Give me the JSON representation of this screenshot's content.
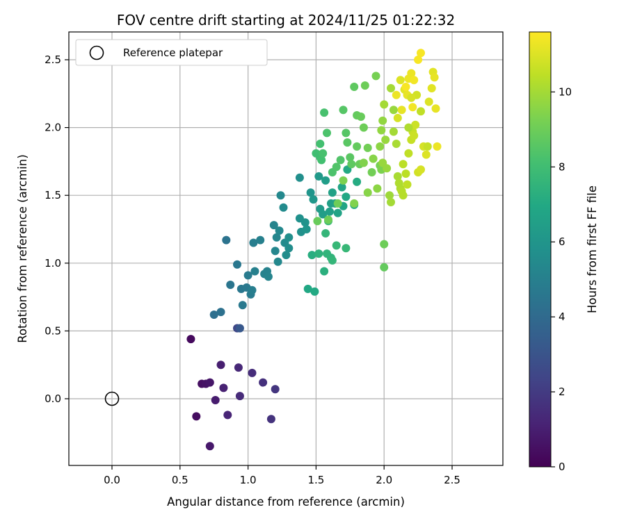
{
  "chart_data": {
    "type": "scatter",
    "title": "FOV centre drift starting at 2024/11/25 01:22:32",
    "xlabel": "Angular distance from reference (arcmin)",
    "ylabel": "Rotation from reference (arcmin)",
    "xlim": [
      -0.32,
      2.85
    ],
    "ylim": [
      -0.5,
      2.7
    ],
    "x_ticks": [
      0.0,
      0.5,
      1.0,
      1.5,
      2.0,
      2.5
    ],
    "y_ticks": [
      0.0,
      0.5,
      1.0,
      1.5,
      2.0,
      2.5
    ],
    "x_tick_labels": [
      "0.0",
      "0.5",
      "1.0",
      "1.5",
      "2.0",
      "2.5"
    ],
    "y_tick_labels": [
      "0.0",
      "0.5",
      "1.0",
      "1.5",
      "2.0",
      "2.5"
    ],
    "grid": true,
    "legend": {
      "location": "top-left",
      "entries": [
        "Reference platepar"
      ]
    },
    "reference_point": {
      "x": 0.0,
      "y": 0.0,
      "marker": "open circle"
    },
    "colorbar": {
      "label": "Hours from first FF file",
      "colormap": "viridis",
      "range": [
        0,
        11.6
      ],
      "ticks": [
        0,
        2,
        4,
        6,
        8,
        10
      ],
      "tick_labels": [
        "0",
        "2",
        "4",
        "6",
        "8",
        "10"
      ]
    },
    "points": [
      [
        0.58,
        0.44,
        0.3
      ],
      [
        0.62,
        -0.13,
        0.4
      ],
      [
        0.66,
        0.11,
        0.5
      ],
      [
        0.69,
        0.11,
        0.6
      ],
      [
        0.72,
        0.12,
        0.7
      ],
      [
        0.72,
        -0.35,
        0.8
      ],
      [
        0.76,
        -0.01,
        0.9
      ],
      [
        0.8,
        0.25,
        1.0
      ],
      [
        0.82,
        0.08,
        1.1
      ],
      [
        0.85,
        -0.12,
        1.2
      ],
      [
        0.93,
        0.23,
        1.3
      ],
      [
        0.94,
        0.02,
        1.4
      ],
      [
        1.03,
        0.19,
        1.5
      ],
      [
        1.11,
        0.12,
        1.6
      ],
      [
        1.17,
        -0.15,
        1.7
      ],
      [
        1.2,
        0.07,
        1.8
      ],
      [
        0.92,
        0.52,
        2.5
      ],
      [
        0.94,
        0.52,
        3.2
      ],
      [
        0.75,
        0.62,
        4.2
      ],
      [
        0.8,
        0.64,
        4.3
      ],
      [
        0.84,
        1.17,
        4.4
      ],
      [
        0.87,
        0.84,
        4.5
      ],
      [
        0.92,
        0.99,
        4.6
      ],
      [
        0.95,
        0.81,
        4.6
      ],
      [
        0.96,
        0.69,
        4.7
      ],
      [
        0.99,
        0.82,
        4.7
      ],
      [
        1.0,
        0.91,
        4.8
      ],
      [
        1.02,
        0.77,
        4.8
      ],
      [
        1.03,
        0.8,
        4.9
      ],
      [
        1.04,
        1.15,
        4.9
      ],
      [
        1.05,
        0.94,
        5.0
      ],
      [
        1.09,
        1.17,
        5.0
      ],
      [
        1.12,
        0.92,
        5.1
      ],
      [
        1.14,
        0.94,
        5.1
      ],
      [
        1.15,
        0.9,
        5.2
      ],
      [
        1.19,
        1.28,
        5.2
      ],
      [
        1.2,
        1.09,
        5.3
      ],
      [
        1.21,
        1.19,
        5.3
      ],
      [
        1.22,
        1.01,
        5.4
      ],
      [
        1.23,
        1.24,
        5.4
      ],
      [
        1.24,
        1.5,
        5.4
      ],
      [
        1.26,
        1.41,
        5.5
      ],
      [
        1.27,
        1.15,
        5.5
      ],
      [
        1.28,
        1.06,
        5.6
      ],
      [
        1.3,
        1.11,
        5.6
      ],
      [
        1.3,
        1.19,
        5.7
      ],
      [
        1.38,
        1.63,
        5.7
      ],
      [
        1.38,
        1.33,
        5.8
      ],
      [
        1.39,
        1.23,
        5.8
      ],
      [
        1.42,
        1.3,
        5.9
      ],
      [
        1.43,
        1.25,
        6.0
      ],
      [
        1.46,
        1.52,
        6.0
      ],
      [
        1.48,
        1.47,
        6.1
      ],
      [
        1.52,
        1.64,
        6.2
      ],
      [
        1.53,
        1.4,
        6.3
      ],
      [
        1.55,
        1.36,
        6.4
      ],
      [
        1.57,
        1.61,
        6.4
      ],
      [
        1.6,
        1.38,
        6.5
      ],
      [
        1.61,
        1.44,
        6.5
      ],
      [
        1.62,
        1.52,
        6.6
      ],
      [
        1.64,
        1.44,
        6.6
      ],
      [
        1.66,
        1.37,
        6.7
      ],
      [
        1.69,
        1.56,
        6.8
      ],
      [
        1.7,
        1.42,
        6.8
      ],
      [
        1.72,
        1.49,
        6.9
      ],
      [
        1.73,
        1.69,
        7.0
      ],
      [
        1.78,
        1.43,
        7.1
      ],
      [
        1.8,
        1.6,
        7.1
      ],
      [
        1.44,
        0.81,
        6.9
      ],
      [
        1.49,
        0.79,
        7.0
      ],
      [
        1.47,
        1.06,
        7.2
      ],
      [
        1.56,
        0.94,
        7.3
      ],
      [
        1.52,
        1.07,
        7.4
      ],
      [
        1.58,
        1.07,
        7.5
      ],
      [
        1.61,
        1.04,
        7.5
      ],
      [
        1.62,
        1.02,
        7.6
      ],
      [
        1.57,
        1.22,
        7.6
      ],
      [
        1.65,
        1.13,
        7.7
      ],
      [
        1.72,
        1.11,
        7.7
      ],
      [
        1.59,
        1.31,
        7.8
      ],
      [
        1.5,
        1.81,
        8.0
      ],
      [
        1.53,
        1.78,
        8.0
      ],
      [
        1.53,
        1.88,
        8.1
      ],
      [
        1.54,
        1.76,
        8.1
      ],
      [
        1.55,
        1.81,
        8.2
      ],
      [
        1.56,
        2.11,
        8.2
      ],
      [
        1.58,
        1.96,
        8.3
      ],
      [
        1.62,
        1.67,
        8.3
      ],
      [
        1.65,
        1.71,
        8.4
      ],
      [
        1.68,
        1.76,
        8.4
      ],
      [
        1.7,
        2.13,
        8.5
      ],
      [
        1.72,
        1.96,
        8.5
      ],
      [
        1.73,
        1.89,
        8.6
      ],
      [
        1.75,
        1.78,
        8.6
      ],
      [
        1.76,
        1.73,
        8.7
      ],
      [
        1.78,
        2.3,
        8.7
      ],
      [
        1.8,
        1.86,
        8.8
      ],
      [
        1.8,
        2.09,
        8.8
      ],
      [
        1.82,
        1.73,
        8.9
      ],
      [
        1.83,
        2.08,
        8.9
      ],
      [
        1.85,
        2.0,
        9.0
      ],
      [
        1.86,
        2.31,
        9.0
      ],
      [
        1.88,
        1.85,
        9.1
      ],
      [
        1.91,
        1.67,
        9.1
      ],
      [
        1.94,
        2.38,
        9.2
      ],
      [
        1.97,
        1.72,
        9.2
      ],
      [
        1.98,
        1.69,
        9.3
      ],
      [
        2.0,
        1.14,
        9.0
      ],
      [
        2.0,
        0.97,
        8.8
      ],
      [
        1.51,
        1.31,
        8.9
      ],
      [
        1.59,
        1.32,
        9.0
      ],
      [
        1.66,
        1.44,
        9.0
      ],
      [
        1.7,
        1.61,
        9.3
      ],
      [
        1.78,
        1.44,
        9.4
      ],
      [
        1.85,
        1.74,
        9.4
      ],
      [
        1.88,
        1.52,
        9.5
      ],
      [
        1.92,
        1.77,
        9.5
      ],
      [
        1.95,
        1.55,
        9.6
      ],
      [
        1.97,
        1.86,
        9.6
      ],
      [
        1.98,
        1.98,
        9.7
      ],
      [
        1.99,
        2.05,
        9.7
      ],
      [
        2.01,
        1.91,
        9.8
      ],
      [
        2.02,
        1.7,
        9.8
      ],
      [
        2.04,
        1.5,
        9.9
      ],
      [
        2.05,
        1.45,
        10.0
      ],
      [
        2.07,
        1.97,
        10.0
      ],
      [
        2.09,
        1.88,
        10.1
      ],
      [
        2.1,
        1.64,
        10.1
      ],
      [
        2.11,
        1.59,
        10.2
      ],
      [
        2.12,
        1.55,
        10.2
      ],
      [
        2.13,
        1.53,
        10.3
      ],
      [
        2.14,
        1.5,
        10.3
      ],
      [
        2.14,
        1.73,
        10.4
      ],
      [
        2.16,
        1.66,
        10.4
      ],
      [
        2.17,
        1.58,
        10.5
      ],
      [
        2.18,
        1.81,
        10.5
      ],
      [
        2.2,
        1.91,
        10.6
      ],
      [
        2.21,
        1.97,
        10.6
      ],
      [
        2.22,
        1.94,
        10.7
      ],
      [
        2.23,
        2.02,
        10.7
      ],
      [
        2.24,
        2.24,
        10.8
      ],
      [
        2.25,
        1.67,
        10.8
      ],
      [
        2.27,
        1.69,
        10.9
      ],
      [
        2.29,
        1.86,
        10.9
      ],
      [
        2.31,
        1.8,
        11.0
      ],
      [
        2.33,
        2.19,
        11.0
      ],
      [
        2.35,
        2.29,
        11.1
      ],
      [
        2.36,
        2.41,
        11.1
      ],
      [
        2.37,
        2.37,
        11.2
      ],
      [
        2.38,
        2.14,
        11.2
      ],
      [
        2.39,
        1.86,
        11.3
      ],
      [
        2.12,
        2.35,
        11.0
      ],
      [
        2.15,
        2.28,
        11.1
      ],
      [
        2.17,
        2.24,
        11.2
      ],
      [
        2.18,
        2.36,
        11.3
      ],
      [
        2.2,
        2.4,
        11.3
      ],
      [
        2.21,
        2.15,
        11.4
      ],
      [
        2.22,
        2.35,
        11.4
      ],
      [
        2.25,
        2.5,
        11.5
      ],
      [
        2.27,
        2.55,
        11.5
      ],
      [
        2.13,
        2.13,
        11.2
      ],
      [
        2.1,
        2.07,
        10.9
      ],
      [
        2.05,
        2.29,
        10.0
      ],
      [
        2.07,
        2.13,
        9.8
      ],
      [
        2.18,
        2.0,
        10.2
      ],
      [
        2.27,
        2.12,
        10.5
      ],
      [
        2.2,
        2.22,
        10.9
      ],
      [
        2.32,
        1.86,
        10.6
      ],
      [
        2.09,
        2.24,
        11.3
      ],
      [
        2.16,
        2.3,
        11.5
      ],
      [
        2.0,
        2.17,
        10.0
      ],
      [
        1.99,
        1.74,
        9.8
      ]
    ]
  }
}
